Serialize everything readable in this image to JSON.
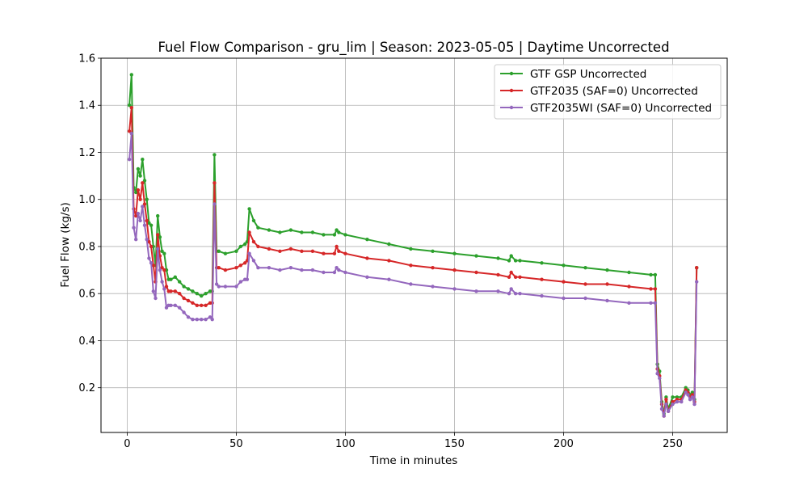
{
  "chart_data": {
    "type": "line",
    "title": "Fuel Flow Comparison - gru_lim | Season: 2023-05-05 | Daytime Uncorrected",
    "xlabel": "Time in minutes",
    "ylabel": "Fuel Flow (kg/s)",
    "xlim": [
      -12,
      275
    ],
    "ylim": [
      0.01,
      1.6
    ],
    "xticks": [
      0,
      50,
      100,
      150,
      200,
      250
    ],
    "yticks": [
      0.2,
      0.4,
      0.6,
      0.8,
      1.0,
      1.2,
      1.4,
      1.6
    ],
    "xtick_labels": [
      "0",
      "50",
      "100",
      "150",
      "200",
      "250"
    ],
    "ytick_labels": [
      "0.2",
      "0.4",
      "0.6",
      "0.8",
      "1.0",
      "1.2",
      "1.4",
      "1.6"
    ],
    "grid": true,
    "legend_position": "top-right",
    "series": [
      {
        "name": "GTF GSP Uncorrected",
        "color": "#2ca02c",
        "x": [
          1,
          2,
          3,
          4,
          5,
          6,
          7,
          8,
          9,
          10,
          11,
          12,
          13,
          14,
          15,
          16,
          17,
          18,
          19,
          20,
          22,
          24,
          26,
          28,
          30,
          32,
          34,
          36,
          38,
          39,
          40,
          41,
          42,
          45,
          50,
          52,
          54,
          55,
          56,
          58,
          60,
          65,
          70,
          75,
          80,
          85,
          90,
          95,
          96,
          97,
          100,
          110,
          120,
          130,
          140,
          150,
          160,
          170,
          175,
          176,
          178,
          180,
          190,
          200,
          210,
          220,
          230,
          240,
          242,
          243,
          244,
          245,
          246,
          247,
          248,
          250,
          252,
          254,
          256,
          257,
          258,
          259,
          260,
          261
        ],
        "values": [
          1.4,
          1.53,
          1.05,
          1.03,
          1.13,
          1.1,
          1.17,
          1.08,
          1.0,
          0.9,
          0.89,
          0.8,
          0.72,
          0.93,
          0.84,
          0.78,
          0.77,
          0.7,
          0.66,
          0.66,
          0.67,
          0.65,
          0.63,
          0.62,
          0.61,
          0.6,
          0.59,
          0.6,
          0.61,
          0.61,
          1.19,
          0.78,
          0.78,
          0.77,
          0.78,
          0.8,
          0.81,
          0.82,
          0.96,
          0.91,
          0.88,
          0.87,
          0.86,
          0.87,
          0.86,
          0.86,
          0.85,
          0.85,
          0.87,
          0.86,
          0.85,
          0.83,
          0.81,
          0.79,
          0.78,
          0.77,
          0.76,
          0.75,
          0.74,
          0.76,
          0.74,
          0.74,
          0.73,
          0.72,
          0.71,
          0.7,
          0.69,
          0.68,
          0.68,
          0.3,
          0.27,
          0.14,
          0.09,
          0.16,
          0.11,
          0.16,
          0.16,
          0.16,
          0.2,
          0.19,
          0.17,
          0.18,
          0.15,
          0.71
        ]
      },
      {
        "name": "GTF2035 (SAF=0) Uncorrected",
        "color": "#d62728",
        "x": [
          1,
          2,
          3,
          4,
          5,
          6,
          7,
          8,
          9,
          10,
          11,
          12,
          13,
          14,
          15,
          16,
          17,
          18,
          19,
          20,
          22,
          24,
          26,
          28,
          30,
          32,
          34,
          36,
          38,
          39,
          40,
          41,
          42,
          45,
          50,
          52,
          54,
          55,
          56,
          58,
          60,
          65,
          70,
          75,
          80,
          85,
          90,
          95,
          96,
          97,
          100,
          110,
          120,
          130,
          140,
          150,
          160,
          170,
          175,
          176,
          178,
          180,
          190,
          200,
          210,
          220,
          230,
          240,
          242,
          243,
          244,
          245,
          246,
          247,
          248,
          250,
          252,
          254,
          256,
          257,
          258,
          259,
          260,
          261
        ],
        "values": [
          1.29,
          1.39,
          0.96,
          0.93,
          1.04,
          1.0,
          1.07,
          0.98,
          0.91,
          0.82,
          0.8,
          0.72,
          0.65,
          0.85,
          0.76,
          0.71,
          0.7,
          0.63,
          0.61,
          0.61,
          0.61,
          0.6,
          0.58,
          0.57,
          0.56,
          0.55,
          0.55,
          0.55,
          0.56,
          0.56,
          1.07,
          0.71,
          0.71,
          0.7,
          0.71,
          0.72,
          0.73,
          0.74,
          0.86,
          0.82,
          0.8,
          0.79,
          0.78,
          0.79,
          0.78,
          0.78,
          0.77,
          0.77,
          0.8,
          0.78,
          0.77,
          0.75,
          0.74,
          0.72,
          0.71,
          0.7,
          0.69,
          0.68,
          0.67,
          0.69,
          0.67,
          0.67,
          0.66,
          0.65,
          0.64,
          0.64,
          0.63,
          0.62,
          0.62,
          0.28,
          0.25,
          0.13,
          0.08,
          0.15,
          0.1,
          0.14,
          0.15,
          0.15,
          0.19,
          0.18,
          0.16,
          0.17,
          0.14,
          0.71
        ]
      },
      {
        "name": "GTF2035WI (SAF=0) Uncorrected",
        "color": "#9467bd",
        "x": [
          1,
          2,
          3,
          4,
          5,
          6,
          7,
          8,
          9,
          10,
          11,
          12,
          13,
          14,
          15,
          16,
          17,
          18,
          19,
          20,
          22,
          24,
          26,
          28,
          30,
          32,
          34,
          36,
          38,
          39,
          40,
          41,
          42,
          45,
          50,
          52,
          54,
          55,
          56,
          58,
          60,
          65,
          70,
          75,
          80,
          85,
          90,
          95,
          96,
          97,
          100,
          110,
          120,
          130,
          140,
          150,
          160,
          170,
          175,
          176,
          178,
          180,
          190,
          200,
          210,
          220,
          230,
          240,
          242,
          243,
          244,
          245,
          246,
          247,
          248,
          250,
          252,
          254,
          256,
          257,
          258,
          259,
          260,
          261
        ],
        "values": [
          1.17,
          1.28,
          0.88,
          0.83,
          0.94,
          0.91,
          0.97,
          0.89,
          0.83,
          0.75,
          0.73,
          0.61,
          0.58,
          0.79,
          0.7,
          0.65,
          0.62,
          0.54,
          0.55,
          0.55,
          0.55,
          0.54,
          0.52,
          0.5,
          0.49,
          0.49,
          0.49,
          0.49,
          0.5,
          0.49,
          0.98,
          0.64,
          0.63,
          0.63,
          0.63,
          0.65,
          0.66,
          0.66,
          0.77,
          0.74,
          0.71,
          0.71,
          0.7,
          0.71,
          0.7,
          0.7,
          0.69,
          0.69,
          0.71,
          0.7,
          0.69,
          0.67,
          0.66,
          0.64,
          0.63,
          0.62,
          0.61,
          0.61,
          0.6,
          0.62,
          0.6,
          0.6,
          0.59,
          0.58,
          0.58,
          0.57,
          0.56,
          0.56,
          0.56,
          0.26,
          0.24,
          0.11,
          0.08,
          0.13,
          0.1,
          0.13,
          0.14,
          0.14,
          0.18,
          0.17,
          0.15,
          0.16,
          0.13,
          0.65
        ]
      }
    ]
  }
}
